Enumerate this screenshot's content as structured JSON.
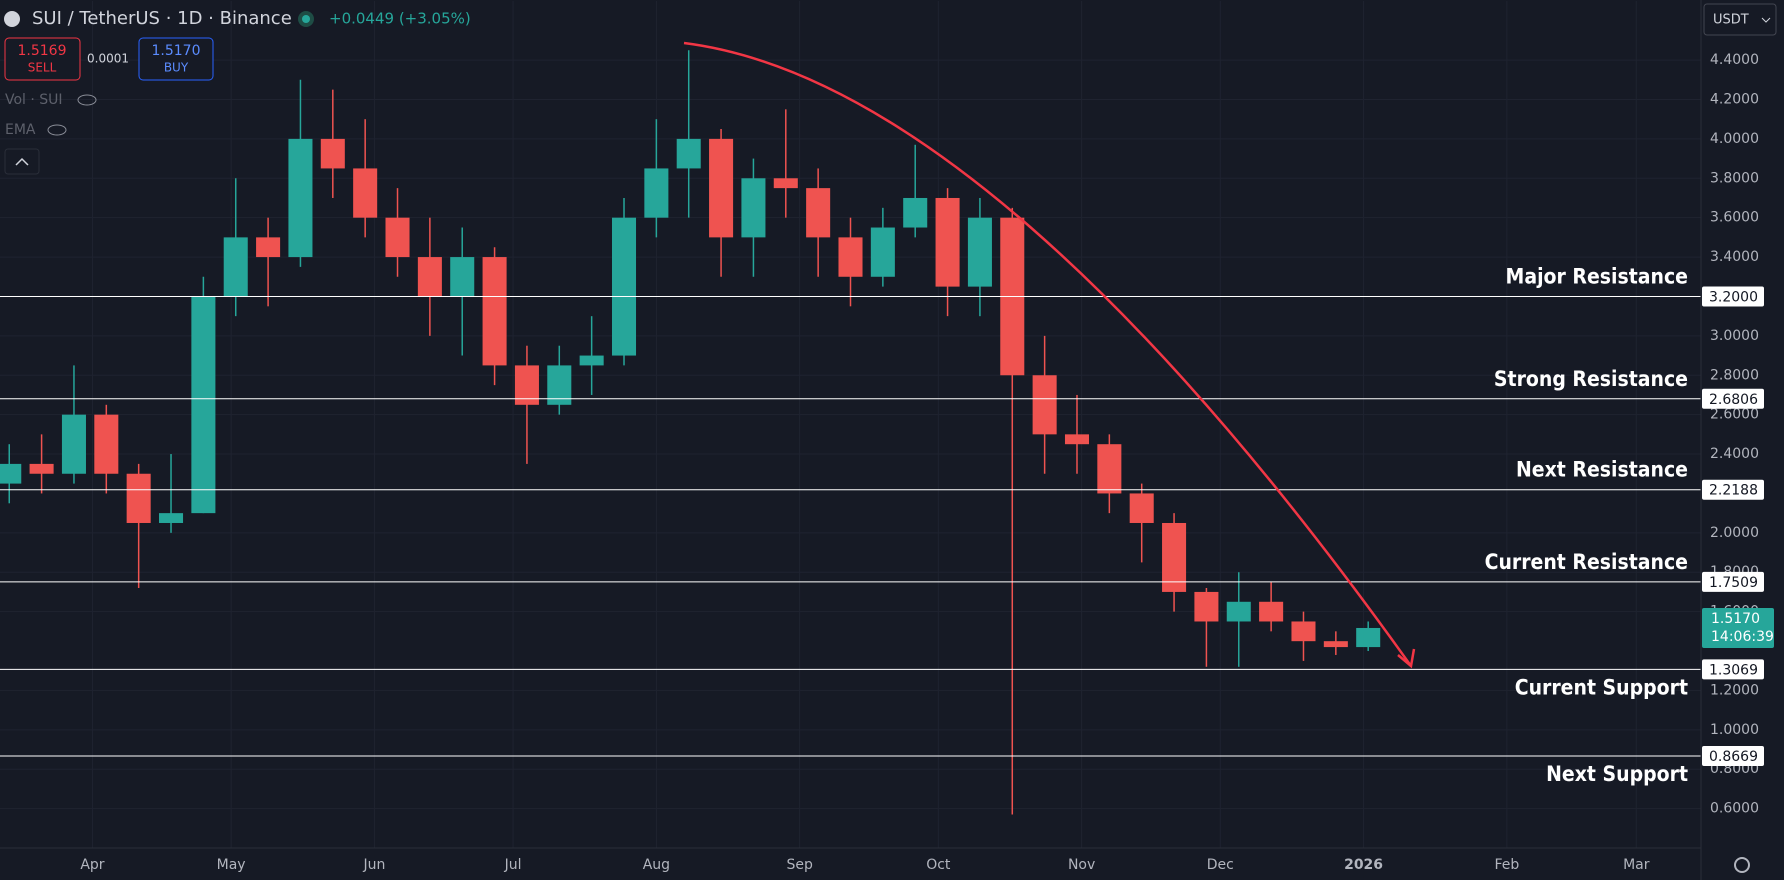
{
  "ui": {
    "symbol": "SUI / TetherUS · 1D · Binance",
    "change": "+0.0449 (+3.05%)",
    "sell_price": "1.5169",
    "sell": "SELL",
    "spread": "0.0001",
    "buy_price": "1.5170",
    "buy": "BUY",
    "volume": "Vol · SUI",
    "ema": "EMA",
    "currency": "USDT"
  },
  "chart_data": {
    "type": "candlestick",
    "up_color": "#26a69a",
    "down_color": "#ef5350",
    "xlim": [
      -20,
      348
    ],
    "ylim": [
      0.4,
      4.7
    ],
    "grid": true,
    "xticks": [
      {
        "value": 0,
        "label": "Apr"
      },
      {
        "value": 30,
        "label": "May"
      },
      {
        "value": 61,
        "label": "Jun"
      },
      {
        "value": 91,
        "label": "Jul"
      },
      {
        "value": 122,
        "label": "Aug"
      },
      {
        "value": 153,
        "label": "Sep"
      },
      {
        "value": 183,
        "label": "Oct"
      },
      {
        "value": 214,
        "label": "Nov"
      },
      {
        "value": 244,
        "label": "Dec"
      },
      {
        "value": 275,
        "label": "2026"
      },
      {
        "value": 306,
        "label": "Feb"
      },
      {
        "value": 334,
        "label": "Mar"
      }
    ],
    "yticks": [
      {
        "value": 4.4,
        "label": "4.4000"
      },
      {
        "value": 4.2,
        "label": "4.2000"
      },
      {
        "value": 4.0,
        "label": "4.0000"
      },
      {
        "value": 3.8,
        "label": "3.8000"
      },
      {
        "value": 3.6,
        "label": "3.6000"
      },
      {
        "value": 3.4,
        "label": "3.4000"
      },
      {
        "value": 3.0,
        "label": "3.0000"
      },
      {
        "value": 2.8,
        "label": "2.8000"
      },
      {
        "value": 2.6,
        "label": "2.6000"
      },
      {
        "value": 2.4,
        "label": "2.4000"
      },
      {
        "value": 2.0,
        "label": "2.0000"
      },
      {
        "value": 1.8,
        "label": "1.8000"
      },
      {
        "value": 1.6,
        "label": "1.6000"
      },
      {
        "value": 1.2,
        "label": "1.2000"
      },
      {
        "value": 1.0,
        "label": "1.0000"
      },
      {
        "value": 0.8,
        "label": "0.8000"
      },
      {
        "value": 0.6,
        "label": "0.6000"
      }
    ],
    "levels": [
      {
        "name": "Major Resistance",
        "value": 3.2,
        "value_label": "3.2000"
      },
      {
        "name": "Strong Resistance",
        "value": 2.6806,
        "value_label": "2.6806"
      },
      {
        "name": "Next Resistance",
        "value": 2.2188,
        "value_label": "2.2188"
      },
      {
        "name": "Current Resistance",
        "value": 1.7509,
        "value_label": "1.7509"
      },
      {
        "name": "Current Support",
        "value": 1.3069,
        "value_label": "1.3069"
      },
      {
        "name": "Next Support",
        "value": 0.8669,
        "value_label": "0.8669"
      }
    ],
    "last_price": {
      "value": 1.517,
      "value_label": "1.5170",
      "countdown": "14:06:39"
    },
    "candles": [
      {
        "x": -18,
        "open": 2.25,
        "high": 2.45,
        "low": 2.15,
        "close": 2.35
      },
      {
        "x": -11,
        "open": 2.35,
        "high": 2.5,
        "low": 2.2,
        "close": 2.3
      },
      {
        "x": -4,
        "open": 2.3,
        "high": 2.85,
        "low": 2.25,
        "close": 2.6
      },
      {
        "x": 3,
        "open": 2.6,
        "high": 2.65,
        "low": 2.2,
        "close": 2.3
      },
      {
        "x": 10,
        "open": 2.3,
        "high": 2.35,
        "low": 1.72,
        "close": 2.05
      },
      {
        "x": 17,
        "open": 2.05,
        "high": 2.4,
        "low": 2.0,
        "close": 2.1
      },
      {
        "x": 24,
        "open": 2.1,
        "high": 3.3,
        "low": 2.1,
        "close": 3.2
      },
      {
        "x": 31,
        "open": 3.2,
        "high": 3.8,
        "low": 3.1,
        "close": 3.5
      },
      {
        "x": 38,
        "open": 3.5,
        "high": 3.6,
        "low": 3.15,
        "close": 3.4
      },
      {
        "x": 45,
        "open": 3.4,
        "high": 4.3,
        "low": 3.35,
        "close": 4.0
      },
      {
        "x": 52,
        "open": 4.0,
        "high": 4.25,
        "low": 3.7,
        "close": 3.85
      },
      {
        "x": 59,
        "open": 3.85,
        "high": 4.1,
        "low": 3.5,
        "close": 3.6
      },
      {
        "x": 66,
        "open": 3.6,
        "high": 3.75,
        "low": 3.3,
        "close": 3.4
      },
      {
        "x": 73,
        "open": 3.4,
        "high": 3.6,
        "low": 3.0,
        "close": 3.2
      },
      {
        "x": 80,
        "open": 3.2,
        "high": 3.55,
        "low": 2.9,
        "close": 3.4
      },
      {
        "x": 87,
        "open": 3.4,
        "high": 3.45,
        "low": 2.75,
        "close": 2.85
      },
      {
        "x": 94,
        "open": 2.85,
        "high": 2.95,
        "low": 2.35,
        "close": 2.65
      },
      {
        "x": 101,
        "open": 2.65,
        "high": 2.95,
        "low": 2.6,
        "close": 2.85
      },
      {
        "x": 108,
        "open": 2.85,
        "high": 3.1,
        "low": 2.7,
        "close": 2.9
      },
      {
        "x": 115,
        "open": 2.9,
        "high": 3.7,
        "low": 2.85,
        "close": 3.6
      },
      {
        "x": 122,
        "open": 3.6,
        "high": 4.1,
        "low": 3.5,
        "close": 3.85
      },
      {
        "x": 129,
        "open": 3.85,
        "high": 4.45,
        "low": 3.6,
        "close": 4.0
      },
      {
        "x": 136,
        "open": 4.0,
        "high": 4.05,
        "low": 3.3,
        "close": 3.5
      },
      {
        "x": 143,
        "open": 3.5,
        "high": 3.9,
        "low": 3.3,
        "close": 3.8
      },
      {
        "x": 150,
        "open": 3.8,
        "high": 4.15,
        "low": 3.6,
        "close": 3.75
      },
      {
        "x": 157,
        "open": 3.75,
        "high": 3.85,
        "low": 3.3,
        "close": 3.5
      },
      {
        "x": 164,
        "open": 3.5,
        "high": 3.6,
        "low": 3.15,
        "close": 3.3
      },
      {
        "x": 171,
        "open": 3.3,
        "high": 3.65,
        "low": 3.25,
        "close": 3.55
      },
      {
        "x": 178,
        "open": 3.55,
        "high": 3.97,
        "low": 3.5,
        "close": 3.7
      },
      {
        "x": 185,
        "open": 3.7,
        "high": 3.75,
        "low": 3.1,
        "close": 3.25
      },
      {
        "x": 192,
        "open": 3.25,
        "high": 3.7,
        "low": 3.1,
        "close": 3.6
      },
      {
        "x": 199,
        "open": 3.6,
        "high": 3.65,
        "low": 0.57,
        "close": 2.8
      },
      {
        "x": 206,
        "open": 2.8,
        "high": 3.0,
        "low": 2.3,
        "close": 2.5
      },
      {
        "x": 213,
        "open": 2.5,
        "high": 2.7,
        "low": 2.3,
        "close": 2.45
      },
      {
        "x": 220,
        "open": 2.45,
        "high": 2.5,
        "low": 2.1,
        "close": 2.2
      },
      {
        "x": 227,
        "open": 2.2,
        "high": 2.25,
        "low": 1.85,
        "close": 2.05
      },
      {
        "x": 234,
        "open": 2.05,
        "high": 2.1,
        "low": 1.6,
        "close": 1.7
      },
      {
        "x": 241,
        "open": 1.7,
        "high": 1.72,
        "low": 1.32,
        "close": 1.55
      },
      {
        "x": 248,
        "open": 1.55,
        "high": 1.8,
        "low": 1.32,
        "close": 1.65
      },
      {
        "x": 255,
        "open": 1.65,
        "high": 1.75,
        "low": 1.5,
        "close": 1.55
      },
      {
        "x": 262,
        "open": 1.55,
        "high": 1.6,
        "low": 1.35,
        "close": 1.45
      },
      {
        "x": 269,
        "open": 1.45,
        "high": 1.5,
        "low": 1.38,
        "close": 1.42
      },
      {
        "x": 276,
        "open": 1.42,
        "high": 1.55,
        "low": 1.4,
        "close": 1.517
      }
    ]
  }
}
